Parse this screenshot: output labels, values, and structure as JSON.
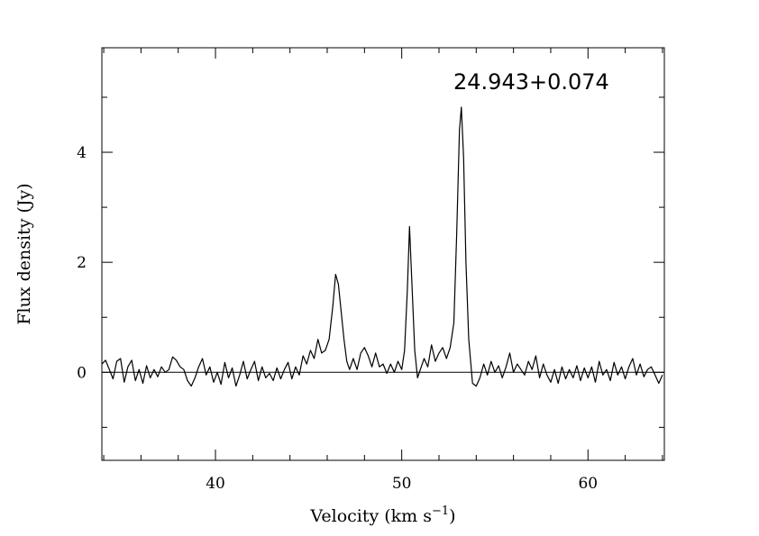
{
  "chart_data": {
    "type": "line",
    "title": "",
    "annotation": "24.943+0.074",
    "xlabel": "Velocity (km s",
    "xlabel_sup": "−1",
    "xlabel_tail": ")",
    "ylabel": "Flux density (Jy)",
    "xlim": [
      33.9,
      64.1
    ],
    "ylim": [
      -1.6,
      5.9
    ],
    "x_major_ticks": [
      40,
      50,
      60
    ],
    "x_tick_labels": [
      "40",
      "50",
      "60"
    ],
    "x_minor_ticks": [
      34,
      36,
      38,
      42,
      44,
      46,
      48,
      52,
      54,
      56,
      58,
      62,
      64
    ],
    "y_major_ticks": [
      0,
      2,
      4
    ],
    "y_tick_labels": [
      "0",
      "2",
      "4"
    ],
    "y_minor_ticks": [
      -1,
      1,
      3,
      5
    ],
    "zero_line": true,
    "grid": false,
    "legend": "none",
    "series": [
      {
        "baseline": [
          [
            33.9,
            0.15
          ],
          [
            34.1,
            0.22
          ],
          [
            34.3,
            0.05
          ],
          [
            34.5,
            -0.12
          ],
          [
            34.7,
            0.2
          ],
          [
            34.9,
            0.25
          ],
          [
            35.1,
            -0.18
          ],
          [
            35.3,
            0.1
          ],
          [
            35.5,
            0.22
          ],
          [
            35.7,
            -0.15
          ],
          [
            35.9,
            0.05
          ],
          [
            36.1,
            -0.2
          ],
          [
            36.3,
            0.12
          ],
          [
            36.5,
            -0.1
          ],
          [
            36.7,
            0.05
          ],
          [
            36.9,
            -0.08
          ],
          [
            37.1,
            0.1
          ],
          [
            37.3,
            0.0
          ],
          [
            37.5,
            0.05
          ],
          [
            37.7,
            0.28
          ],
          [
            37.9,
            0.22
          ],
          [
            38.1,
            0.1
          ],
          [
            38.3,
            0.05
          ],
          [
            38.5,
            -0.15
          ],
          [
            38.7,
            -0.25
          ],
          [
            38.9,
            -0.1
          ],
          [
            39.1,
            0.1
          ],
          [
            39.3,
            0.25
          ],
          [
            39.5,
            -0.05
          ],
          [
            39.7,
            0.1
          ],
          [
            39.9,
            -0.18
          ],
          [
            40.1,
            0.0
          ],
          [
            40.3,
            -0.22
          ],
          [
            40.5,
            0.18
          ],
          [
            40.7,
            -0.1
          ],
          [
            40.9,
            0.08
          ],
          [
            41.1,
            -0.25
          ],
          [
            41.3,
            -0.05
          ],
          [
            41.5,
            0.2
          ],
          [
            41.7,
            -0.12
          ],
          [
            41.9,
            0.05
          ],
          [
            42.1,
            0.2
          ],
          [
            42.3,
            -0.15
          ],
          [
            42.5,
            0.1
          ],
          [
            42.7,
            -0.1
          ],
          [
            42.9,
            -0.02
          ],
          [
            43.1,
            -0.15
          ],
          [
            43.3,
            0.08
          ],
          [
            43.5,
            -0.12
          ],
          [
            43.7,
            0.05
          ],
          [
            43.9,
            0.18
          ],
          [
            44.1,
            -0.12
          ],
          [
            44.3,
            0.1
          ],
          [
            44.5,
            -0.05
          ],
          [
            44.7,
            0.3
          ],
          [
            44.9,
            0.15
          ],
          [
            45.1,
            0.4
          ],
          [
            45.3,
            0.25
          ],
          [
            45.5,
            0.6
          ],
          [
            45.7,
            0.35
          ],
          [
            45.9,
            0.4
          ],
          [
            46.1,
            0.6
          ],
          [
            46.3,
            1.2
          ],
          [
            46.45,
            1.78
          ],
          [
            46.6,
            1.6
          ],
          [
            46.75,
            1.1
          ],
          [
            46.9,
            0.6
          ],
          [
            47.05,
            0.2
          ],
          [
            47.2,
            0.05
          ],
          [
            47.4,
            0.25
          ],
          [
            47.6,
            0.05
          ],
          [
            47.8,
            0.35
          ],
          [
            48.0,
            0.45
          ],
          [
            48.2,
            0.3
          ],
          [
            48.4,
            0.1
          ],
          [
            48.6,
            0.35
          ],
          [
            48.8,
            0.1
          ],
          [
            49.0,
            0.15
          ],
          [
            49.2,
            -0.02
          ],
          [
            49.4,
            0.15
          ],
          [
            49.6,
            0.0
          ],
          [
            49.8,
            0.2
          ],
          [
            50.0,
            0.05
          ],
          [
            50.15,
            0.4
          ],
          [
            50.3,
            1.5
          ],
          [
            50.42,
            2.65
          ],
          [
            50.55,
            1.6
          ],
          [
            50.7,
            0.4
          ],
          [
            50.85,
            -0.1
          ],
          [
            51.0,
            0.05
          ],
          [
            51.2,
            0.25
          ],
          [
            51.4,
            0.1
          ],
          [
            51.6,
            0.5
          ],
          [
            51.8,
            0.2
          ],
          [
            52.0,
            0.35
          ],
          [
            52.2,
            0.45
          ],
          [
            52.4,
            0.25
          ],
          [
            52.6,
            0.45
          ],
          [
            52.8,
            0.9
          ],
          [
            52.95,
            2.5
          ],
          [
            53.1,
            4.4
          ],
          [
            53.2,
            4.82
          ],
          [
            53.32,
            3.9
          ],
          [
            53.45,
            2.0
          ],
          [
            53.6,
            0.6
          ],
          [
            53.8,
            -0.2
          ],
          [
            54.0,
            -0.25
          ],
          [
            54.2,
            -0.1
          ],
          [
            54.4,
            0.15
          ],
          [
            54.6,
            -0.05
          ],
          [
            54.8,
            0.2
          ],
          [
            55.0,
            0.0
          ],
          [
            55.2,
            0.12
          ],
          [
            55.4,
            -0.1
          ],
          [
            55.6,
            0.1
          ],
          [
            55.8,
            0.35
          ],
          [
            56.0,
            0.0
          ],
          [
            56.2,
            0.15
          ],
          [
            56.4,
            0.05
          ],
          [
            56.6,
            -0.05
          ],
          [
            56.8,
            0.2
          ],
          [
            57.0,
            0.05
          ],
          [
            57.2,
            0.3
          ],
          [
            57.4,
            -0.1
          ],
          [
            57.6,
            0.15
          ],
          [
            57.8,
            -0.05
          ],
          [
            58.0,
            -0.18
          ],
          [
            58.2,
            0.05
          ],
          [
            58.4,
            -0.2
          ],
          [
            58.6,
            0.1
          ],
          [
            58.8,
            -0.12
          ],
          [
            59.0,
            0.05
          ],
          [
            59.2,
            -0.1
          ],
          [
            59.4,
            0.12
          ],
          [
            59.6,
            -0.15
          ],
          [
            59.8,
            0.08
          ],
          [
            60.0,
            -0.1
          ],
          [
            60.2,
            0.1
          ],
          [
            60.4,
            -0.18
          ],
          [
            60.6,
            0.2
          ],
          [
            60.8,
            -0.05
          ],
          [
            61.0,
            0.05
          ],
          [
            61.2,
            -0.15
          ],
          [
            61.4,
            0.18
          ],
          [
            61.6,
            -0.05
          ],
          [
            61.8,
            0.1
          ],
          [
            62.0,
            -0.12
          ],
          [
            62.2,
            0.1
          ],
          [
            62.4,
            0.25
          ],
          [
            62.6,
            -0.05
          ],
          [
            62.8,
            0.15
          ],
          [
            63.0,
            -0.08
          ],
          [
            63.2,
            0.05
          ],
          [
            63.4,
            0.1
          ],
          [
            63.6,
            -0.05
          ],
          [
            63.8,
            -0.2
          ],
          [
            64.0,
            -0.05
          ]
        ]
      }
    ]
  }
}
